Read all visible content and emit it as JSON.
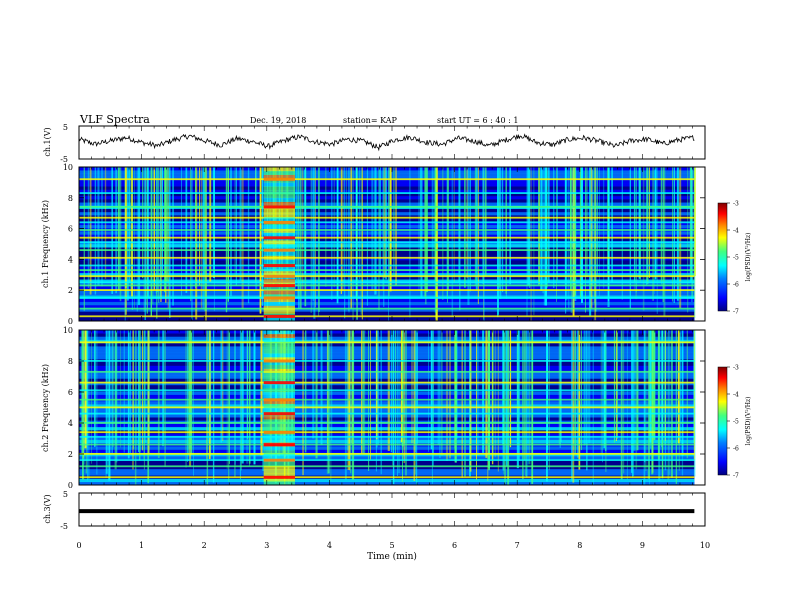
{
  "header": {
    "title": "VLF Spectra",
    "date": "Dec. 19, 2018",
    "station": "station= KAP",
    "start": "start  UT =   6  : 40 : 1"
  },
  "chart_data": [
    {
      "type": "line",
      "panel": "ch1-waveform",
      "ylabel": "ch.1(V)",
      "ylim": [
        -5,
        5
      ],
      "yticks": [
        "5",
        "-5"
      ],
      "x_unit": "min",
      "xlim": [
        0,
        10
      ],
      "data_xlim": [
        0,
        9.83
      ],
      "series": [
        {
          "values": [
            1.0,
            -0.5,
            0.5,
            1.5,
            0.0,
            -1.0,
            0.8,
            2.0,
            0.5,
            -0.8,
            1.2,
            0.3,
            -1.2,
            0.6,
            1.8,
            0.2,
            -0.5,
            1.0,
            0.4,
            -1.5,
            0.8,
            1.6,
            0.1,
            -0.6,
            1.3,
            0.5,
            -1.0,
            0.7,
            2.2,
            0.0,
            -0.7,
            0.9,
            1.4,
            0.3,
            -1.1,
            0.6,
            1.0,
            -0.4,
            0.8,
            1.5
          ]
        }
      ]
    },
    {
      "type": "heatmap",
      "panel": "ch1-spectrogram",
      "ylabel": "ch.1  Frequency (kHz)",
      "ylim": [
        0,
        10
      ],
      "yticks": [
        "0",
        "2",
        "4",
        "6",
        "8",
        "10"
      ],
      "xlim": [
        0,
        10
      ],
      "data_xlim": [
        0,
        9.83
      ],
      "burst_min": [
        2.95,
        3.45
      ],
      "bands_khz": [
        0.3,
        0.8,
        1.5,
        2.0,
        2.3,
        2.5,
        2.9,
        3.3,
        3.6,
        4.1,
        4.6,
        5.1,
        5.4,
        5.9,
        6.4,
        6.7,
        7.4,
        8.3,
        9.2
      ],
      "colorbar": {
        "label": "log(PSD)(V²/Hz)",
        "range": [
          -7,
          -3
        ],
        "ticks": [
          "-3",
          "-4",
          "-5",
          "-6",
          "-7"
        ]
      }
    },
    {
      "type": "heatmap",
      "panel": "ch2-spectrogram",
      "ylabel": "ch.2  Frequency (kHz)",
      "ylim": [
        0,
        10
      ],
      "yticks": [
        "0",
        "2",
        "4",
        "6",
        "8",
        "10"
      ],
      "xlim": [
        0,
        10
      ],
      "data_xlim": [
        0,
        9.83
      ],
      "burst_min": [
        2.95,
        3.45
      ],
      "bands_khz": [
        0.5,
        1.2,
        1.6,
        2.0,
        2.6,
        3.1,
        3.4,
        4.0,
        4.6,
        5.0,
        5.5,
        6.1,
        6.6,
        7.3,
        8.0,
        9.2
      ],
      "colorbar": {
        "label": "log(PSD)(V²/Hz)",
        "range": [
          -7,
          -3
        ],
        "ticks": [
          "-3",
          "-4",
          "-5",
          "-6",
          "-7"
        ]
      }
    },
    {
      "type": "line",
      "panel": "ch3-waveform",
      "ylabel": "ch.3(V)",
      "ylim": [
        -5,
        5
      ],
      "yticks": [
        "5",
        "-5"
      ],
      "xlabel": "Time  (min)",
      "xlim": [
        0,
        10
      ],
      "xticks": [
        "0",
        "1",
        "2",
        "3",
        "4",
        "5",
        "6",
        "7",
        "8",
        "9",
        "10"
      ],
      "data_xlim": [
        0,
        9.83
      ],
      "series": [
        {
          "values": [
            -0.5,
            -0.5
          ]
        }
      ]
    }
  ],
  "colors": {
    "colormap": [
      "#000080",
      "#0000ff",
      "#0080ff",
      "#00ffff",
      "#40ff80",
      "#ffff00",
      "#ff8000",
      "#ff0000",
      "#800000"
    ],
    "trace": "#000000",
    "frame": "#000000"
  }
}
